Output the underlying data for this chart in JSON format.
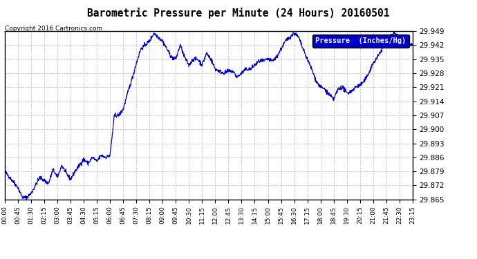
{
  "title": "Barometric Pressure per Minute (24 Hours) 20160501",
  "copyright": "Copyright 2016 Cartronics.com",
  "legend_label": "Pressure  (Inches/Hg)",
  "legend_bg": "#0000CC",
  "legend_text_color": "#FFFFFF",
  "line_color": "#0000CC",
  "background_color": "#FFFFFF",
  "grid_color": "#BBBBBB",
  "title_color": "#000000",
  "ylim": [
    29.865,
    29.949
  ],
  "ytick_step": 0.007,
  "yticks": [
    29.865,
    29.872,
    29.879,
    29.886,
    29.893,
    29.9,
    29.907,
    29.914,
    29.921,
    29.928,
    29.935,
    29.942,
    29.949
  ],
  "xtick_labels": [
    "00:00",
    "00:45",
    "01:30",
    "02:15",
    "03:00",
    "03:45",
    "04:30",
    "05:15",
    "06:00",
    "06:45",
    "07:30",
    "08:15",
    "09:00",
    "09:45",
    "10:30",
    "11:15",
    "12:00",
    "12:45",
    "13:30",
    "14:15",
    "15:00",
    "15:45",
    "16:30",
    "17:15",
    "18:00",
    "18:45",
    "19:30",
    "20:15",
    "21:00",
    "21:45",
    "22:30",
    "23:15"
  ],
  "control_points_x": [
    0,
    45,
    60,
    75,
    90,
    120,
    150,
    165,
    180,
    195,
    210,
    225,
    240,
    255,
    270,
    285,
    300,
    315,
    330,
    345,
    360,
    375,
    390,
    405,
    420,
    435,
    450,
    465,
    480,
    495,
    510,
    525,
    540,
    555,
    570,
    585,
    600,
    615,
    630,
    645,
    660,
    675,
    690,
    705,
    720,
    735,
    750,
    765,
    780,
    795,
    810,
    825,
    840,
    855,
    870,
    885,
    900,
    915,
    930,
    945,
    960,
    975,
    990,
    1005,
    1020,
    1035,
    1050,
    1065,
    1080,
    1095,
    1110,
    1125,
    1140,
    1155,
    1170,
    1185,
    1200,
    1215,
    1230,
    1245,
    1260,
    1275,
    1290,
    1305,
    1320,
    1335,
    1350,
    1365,
    1380,
    1395
  ],
  "control_points_y": [
    29.879,
    29.871,
    29.866,
    29.866,
    29.868,
    29.876,
    29.873,
    29.88,
    29.876,
    29.882,
    29.878,
    29.875,
    29.879,
    29.882,
    29.885,
    29.883,
    29.886,
    29.884,
    29.887,
    29.886,
    29.887,
    29.907,
    29.907,
    29.91,
    29.918,
    29.925,
    29.933,
    29.94,
    29.942,
    29.944,
    29.948,
    29.946,
    29.944,
    29.94,
    29.936,
    29.935,
    29.942,
    29.936,
    29.932,
    29.935,
    29.935,
    29.932,
    29.938,
    29.935,
    29.93,
    29.929,
    29.928,
    29.929,
    29.929,
    29.926,
    29.928,
    29.93,
    29.93,
    29.932,
    29.934,
    29.934,
    29.935,
    29.934,
    29.936,
    29.94,
    29.944,
    29.946,
    29.948,
    29.946,
    29.94,
    29.935,
    29.93,
    29.924,
    29.921,
    29.92,
    29.917,
    29.915,
    29.92,
    29.921,
    29.918,
    29.919,
    29.921,
    29.922,
    29.924,
    29.928,
    29.933,
    29.936,
    29.94,
    29.944,
    29.947,
    29.948,
    29.946,
    29.944,
    29.942,
    29.942
  ]
}
